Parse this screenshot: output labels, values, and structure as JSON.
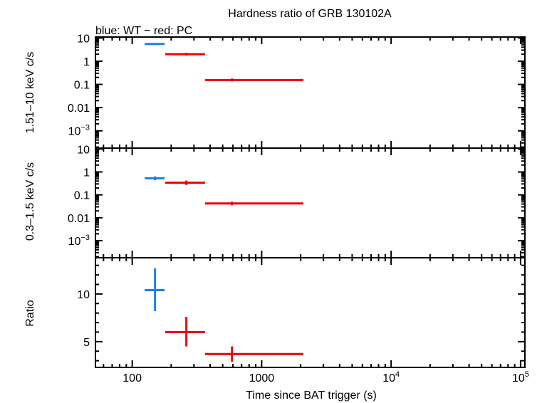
{
  "chart_data": {
    "type": "scatter",
    "title": "Hardness ratio of GRB 130102A",
    "subtitle": "blue: WT − red: PC",
    "xlabel": "Time since BAT trigger (s)",
    "x_scale": "log",
    "xlim": [
      52,
      108000
    ],
    "x_ticks": [
      {
        "value": 100,
        "label": "100",
        "sup": ""
      },
      {
        "value": 1000,
        "label": "1000",
        "sup": ""
      },
      {
        "value": 10000,
        "label": "10",
        "sup": "4"
      },
      {
        "value": 100000,
        "label": "10",
        "sup": "5"
      }
    ],
    "colors": {
      "WT": "#1a7fe6",
      "PC": "#ee0000"
    },
    "panels": [
      {
        "id": "hard",
        "ylabel": "1.51–10 keV c/s",
        "y_scale": "log",
        "ylim": [
          0.00018,
          11
        ],
        "y_ticks": [
          {
            "value": 10,
            "label": "10",
            "sup": ""
          },
          {
            "value": 1,
            "label": "1",
            "sup": ""
          },
          {
            "value": 0.1,
            "label": "0.1",
            "sup": ""
          },
          {
            "value": 0.01,
            "label": "0.01",
            "sup": ""
          },
          {
            "value": 0.001,
            "label": "10",
            "sup": "−3"
          }
        ],
        "series": [
          {
            "mode": "WT",
            "points": [
              {
                "x": 150,
                "xlo": 125,
                "xhi": 178,
                "y": 5.5,
                "ylo": 5.0,
                "yhi": 6.0
              }
            ]
          },
          {
            "mode": "PC",
            "points": [
              {
                "x": 262,
                "xlo": 180,
                "xhi": 365,
                "y": 2.0,
                "ylo": 1.75,
                "yhi": 2.3
              },
              {
                "x": 590,
                "xlo": 365,
                "xhi": 2100,
                "y": 0.155,
                "ylo": 0.135,
                "yhi": 0.18
              }
            ]
          }
        ]
      },
      {
        "id": "soft",
        "ylabel": "0.3–1.5 keV c/s",
        "y_scale": "log",
        "ylim": [
          0.00018,
          11
        ],
        "y_ticks": [
          {
            "value": 10,
            "label": "10",
            "sup": ""
          },
          {
            "value": 1,
            "label": "1",
            "sup": ""
          },
          {
            "value": 0.1,
            "label": "0.1",
            "sup": ""
          },
          {
            "value": 0.01,
            "label": "0.01",
            "sup": ""
          },
          {
            "value": 0.001,
            "label": "10",
            "sup": "−3"
          }
        ],
        "series": [
          {
            "mode": "WT",
            "points": [
              {
                "x": 150,
                "xlo": 125,
                "xhi": 178,
                "y": 0.53,
                "ylo": 0.44,
                "yhi": 0.64
              }
            ]
          },
          {
            "mode": "PC",
            "points": [
              {
                "x": 262,
                "xlo": 180,
                "xhi": 365,
                "y": 0.34,
                "ylo": 0.27,
                "yhi": 0.42
              },
              {
                "x": 590,
                "xlo": 365,
                "xhi": 2100,
                "y": 0.042,
                "ylo": 0.035,
                "yhi": 0.05
              }
            ]
          }
        ]
      },
      {
        "id": "ratio",
        "ylabel": "Ratio",
        "y_scale": "linear",
        "ylim": [
          2.3,
          13.8
        ],
        "y_ticks": [
          {
            "value": 10,
            "label": "10",
            "sup": ""
          },
          {
            "value": 5,
            "label": "5",
            "sup": ""
          }
        ],
        "series": [
          {
            "mode": "WT",
            "points": [
              {
                "x": 150,
                "xlo": 125,
                "xhi": 178,
                "y": 10.4,
                "ylo": 8.2,
                "yhi": 12.7
              }
            ]
          },
          {
            "mode": "PC",
            "points": [
              {
                "x": 262,
                "xlo": 180,
                "xhi": 365,
                "y": 6.0,
                "ylo": 4.5,
                "yhi": 7.6
              },
              {
                "x": 590,
                "xlo": 365,
                "xhi": 2100,
                "y": 3.7,
                "ylo": 2.9,
                "yhi": 4.5
              }
            ]
          }
        ]
      }
    ]
  }
}
